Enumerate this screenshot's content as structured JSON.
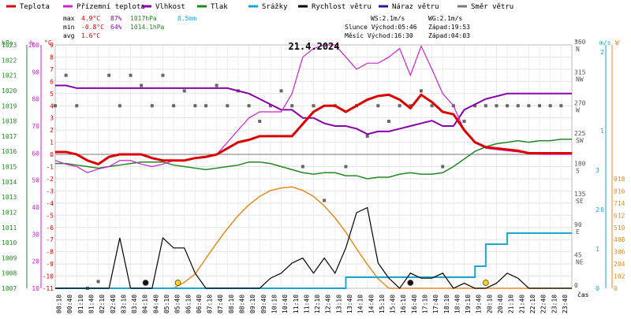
{
  "chart_data": {
    "type": "line",
    "title": "21.4.2024",
    "legend": [
      {
        "label": "Teplota",
        "color": "#dd0000"
      },
      {
        "label": "Přízemní teplota",
        "color": "#cc22cc"
      },
      {
        "label": "Vlhkost",
        "color": "#8800aa"
      },
      {
        "label": "Tlak",
        "color": "#228822"
      },
      {
        "label": "Srážky",
        "color": "#1aa7d6"
      },
      {
        "label": "Rychlost větru",
        "color": "#000000"
      },
      {
        "label": "Náraz větru",
        "color": "#2a1a99"
      },
      {
        "label": "Směr větru",
        "color": "#777777"
      }
    ],
    "stats": {
      "rows": [
        {
          "label": "max",
          "temp": "4.9°C",
          "hum": "87%",
          "press": "1017hPa",
          "rain": "0.5mm"
        },
        {
          "label": "min",
          "temp": "-0.8°C",
          "hum": "64%",
          "press": "1014.1hPa",
          "rain": ""
        },
        {
          "label": "avg",
          "temp": "1.6°C",
          "hum": "",
          "press": "",
          "rain": ""
        }
      ],
      "wind": [
        "WS:2.1m/s",
        "WG:2.1m/s",
        "Slunce Východ:05:46",
        "Západ:19:53",
        "Měsíc Východ:16:30",
        "Západ:04:03"
      ]
    },
    "axes": {
      "left_titles": [
        "hPa",
        "%",
        "°C"
      ],
      "right_titles": [
        "°",
        "m/s",
        "W"
      ],
      "x_label": "čas",
      "hpa_ticks": [
        "1023",
        "1022",
        "1021",
        "1020",
        "1019",
        "1018",
        "1017",
        "1016",
        "1015",
        "1014",
        "1013",
        "1012",
        "1011",
        "1010",
        "1009",
        "1008",
        "1007"
      ],
      "pct_ticks": [
        "100",
        "90",
        "80",
        "70",
        "60",
        "50",
        "40",
        "30",
        "20",
        "10"
      ],
      "c_ticks": [
        "9",
        "8",
        "7",
        "6",
        "5",
        "4",
        "3",
        "2",
        "1",
        "0",
        "-1",
        "-2",
        "-3",
        "-4",
        "-5",
        "-6",
        "-7",
        "-8",
        "-9",
        "-10",
        "-11"
      ],
      "deg_ticks": [
        "360\nN",
        "315\nNW",
        "270\nW",
        "225\nSW",
        "180\nS",
        "135\nSE",
        "90\nE",
        "45\nNE",
        "0"
      ],
      "ms_ticks": [
        "2",
        "1",
        "0"
      ],
      "ms_ticks_lower": [
        "3",
        "2",
        "1",
        "0"
      ],
      "w_ticks": [
        "918",
        "816",
        "714",
        "612",
        "510",
        "408",
        "306",
        "204",
        "102",
        "0"
      ],
      "time_ticks": [
        "00:10",
        "00:40",
        "01:10",
        "01:40",
        "02:10",
        "02:40",
        "03:10",
        "03:40",
        "04:10",
        "04:40",
        "05:10",
        "05:40",
        "06:10",
        "06:40",
        "07:10",
        "07:40",
        "08:10",
        "08:40",
        "09:10",
        "09:40",
        "10:10",
        "10:40",
        "11:10",
        "11:40",
        "12:10",
        "12:40",
        "13:10",
        "13:40",
        "14:10",
        "14:40",
        "15:10",
        "15:40",
        "16:10",
        "16:40",
        "17:10",
        "17:40",
        "18:10",
        "18:40",
        "19:10",
        "19:40",
        "20:10",
        "20:40",
        "21:10",
        "21:40",
        "22:10",
        "22:40",
        "23:10",
        "23:40"
      ]
    },
    "x_hours": [
      0,
      0.5,
      1,
      1.5,
      2,
      2.5,
      3,
      3.5,
      4,
      4.5,
      5,
      5.5,
      6,
      6.5,
      7,
      7.5,
      8,
      8.5,
      9,
      9.5,
      10,
      10.5,
      11,
      11.5,
      12,
      12.5,
      13,
      13.5,
      14,
      14.5,
      15,
      15.5,
      16,
      16.5,
      17,
      17.5,
      18,
      18.5,
      19,
      19.5,
      20,
      20.5,
      21,
      21.5,
      22,
      22.5,
      23,
      23.5,
      24
    ],
    "series": [
      {
        "name": "Teplota",
        "unit": "°C",
        "color": "#dd0000",
        "values": [
          0.2,
          0.2,
          0,
          -0.5,
          -0.8,
          -0.2,
          0,
          0,
          0,
          -0.3,
          -0.5,
          -0.5,
          -0.5,
          -0.3,
          -0.2,
          0,
          0.5,
          1,
          1.2,
          1.5,
          1.5,
          1.5,
          1.5,
          2.5,
          3.5,
          4,
          4,
          3.5,
          4,
          4.5,
          4.8,
          4.9,
          4.5,
          3.8,
          4.9,
          4.3,
          3.5,
          3.3,
          2,
          1,
          0.6,
          0.5,
          0.4,
          0.3,
          0.1,
          0.1,
          0.1,
          0.1,
          0.1
        ]
      },
      {
        "name": "Přízemní teplota",
        "unit": "°C",
        "color": "#cc22cc",
        "values": [
          -0.5,
          -0.8,
          -1,
          -1.5,
          -1.2,
          -1,
          -0.5,
          -0.5,
          -0.8,
          -1,
          -0.8,
          -0.5,
          -0.5,
          -0.3,
          -0.2,
          0,
          1,
          2,
          3,
          3.5,
          3.5,
          3.5,
          5,
          8,
          8.7,
          9,
          9,
          8,
          7,
          7.5,
          7.5,
          8,
          8.7,
          6.5,
          8.9,
          7,
          5,
          4,
          2,
          1,
          0.5,
          0.4,
          0.3,
          0.2,
          0.1,
          0,
          0,
          0,
          0
        ]
      },
      {
        "name": "Vlhkost",
        "unit": "%",
        "color": "#8800aa",
        "values": [
          85,
          85,
          84,
          84,
          84,
          84,
          84,
          84,
          84,
          84,
          84,
          84,
          84,
          84,
          84,
          84,
          84,
          83,
          82,
          80,
          78,
          76,
          76,
          73,
          73,
          71,
          70,
          70,
          69,
          67,
          68,
          68,
          69,
          70,
          71,
          72,
          70,
          70,
          76,
          78,
          80,
          81,
          82,
          82,
          82,
          82,
          82,
          82,
          82
        ]
      },
      {
        "name": "Tlak",
        "unit": "hPa",
        "color": "#228822",
        "values": [
          1015.2,
          1015.2,
          1015.1,
          1015,
          1014.9,
          1015,
          1015.1,
          1015.2,
          1015.3,
          1015.3,
          1015.3,
          1015.1,
          1015,
          1014.9,
          1014.8,
          1014.9,
          1015,
          1015.1,
          1015.3,
          1015.3,
          1015.2,
          1015,
          1014.8,
          1014.6,
          1014.5,
          1014.6,
          1014.6,
          1014.4,
          1014.4,
          1014.2,
          1014.3,
          1014.3,
          1014.5,
          1014.6,
          1014.5,
          1014.5,
          1014.6,
          1015,
          1015.5,
          1016,
          1016.3,
          1016.5,
          1016.6,
          1016.7,
          1016.6,
          1016.7,
          1016.7,
          1016.8,
          1016.8
        ]
      },
      {
        "name": "Srážky",
        "unit": "mm",
        "color": "#1aa7d6",
        "values": [
          0,
          0,
          0,
          0,
          0,
          0,
          0,
          0,
          0,
          0,
          0,
          0,
          0,
          0,
          0,
          0,
          0,
          0,
          0,
          0,
          0,
          0,
          0,
          0,
          0,
          0,
          0,
          0.1,
          0.1,
          0.1,
          0.1,
          0.1,
          0.1,
          0.1,
          0.1,
          0.1,
          0.1,
          0.1,
          0.1,
          0.2,
          0.4,
          0.4,
          0.5,
          0.5,
          0.5,
          0.5,
          0.5,
          0.5,
          0.5
        ]
      },
      {
        "name": "Rychlost větru",
        "unit": "m/s",
        "color": "#000000",
        "values": [
          0,
          0,
          0,
          0,
          0,
          0,
          1,
          0,
          0,
          0,
          1,
          0.8,
          0.8,
          0.3,
          0,
          0,
          0,
          0,
          0,
          0,
          0.2,
          0.3,
          0.5,
          0.6,
          0.3,
          0.6,
          0.3,
          0.8,
          1.5,
          1.6,
          0.5,
          0.2,
          0,
          0.3,
          0.2,
          0.2,
          0.3,
          0,
          0.1,
          0,
          0,
          0.1,
          0.3,
          0.2,
          0,
          0,
          0,
          0,
          0
        ]
      },
      {
        "name": "Slunce",
        "unit": "W",
        "color": "#e88a1a",
        "values": [
          0,
          0,
          0,
          0,
          0,
          0,
          0,
          0,
          0,
          0,
          0,
          0,
          50,
          120,
          250,
          380,
          500,
          610,
          700,
          770,
          820,
          840,
          850,
          820,
          770,
          690,
          590,
          470,
          330,
          200,
          80,
          0,
          0,
          0,
          0,
          0,
          0,
          0,
          0,
          0,
          0,
          0,
          0,
          0,
          0,
          0,
          0,
          0,
          0
        ]
      }
    ],
    "direction_points": [
      [
        0,
        270
      ],
      [
        0.5,
        315
      ],
      [
        1,
        270
      ],
      [
        1.5,
        0
      ],
      [
        2,
        10
      ],
      [
        2.5,
        315
      ],
      [
        3,
        270
      ],
      [
        3.5,
        315
      ],
      [
        4,
        300
      ],
      [
        4.5,
        270
      ],
      [
        5,
        315
      ],
      [
        5.5,
        270
      ],
      [
        6,
        292
      ],
      [
        6.5,
        270
      ],
      [
        7,
        270
      ],
      [
        7.5,
        300
      ],
      [
        8,
        270
      ],
      [
        8.5,
        292
      ],
      [
        9,
        270
      ],
      [
        9.5,
        247
      ],
      [
        10,
        270
      ],
      [
        10.5,
        292
      ],
      [
        11,
        270
      ],
      [
        11.5,
        180
      ],
      [
        12,
        270
      ],
      [
        12.5,
        130
      ],
      [
        13,
        270
      ],
      [
        13.5,
        180
      ],
      [
        14,
        270
      ],
      [
        14.5,
        225
      ],
      [
        15,
        270
      ],
      [
        15.5,
        247
      ],
      [
        16,
        270
      ],
      [
        16.5,
        270
      ],
      [
        17,
        292
      ],
      [
        17.5,
        270
      ],
      [
        18,
        180
      ],
      [
        18.5,
        270
      ],
      [
        19,
        247
      ],
      [
        19.5,
        270
      ],
      [
        20,
        270
      ],
      [
        20.5,
        270
      ],
      [
        21,
        270
      ],
      [
        21.5,
        270
      ],
      [
        22,
        270
      ],
      [
        22.5,
        270
      ],
      [
        23,
        270
      ],
      [
        23.5,
        270
      ]
    ],
    "markers": [
      {
        "kind": "sunrise",
        "x": 5.7,
        "color": "#ffd600"
      },
      {
        "kind": "sunset",
        "x": 20.0,
        "color": "#ffd600"
      },
      {
        "kind": "moonset",
        "x": 4.2,
        "color": "#111111"
      },
      {
        "kind": "moonrise",
        "x": 16.5,
        "color": "#111111"
      }
    ],
    "ranges": {
      "x": [
        0,
        24
      ],
      "c": [
        -11,
        9
      ],
      "pct": [
        10,
        100
      ],
      "hpa": [
        1007,
        1023
      ],
      "deg": [
        0,
        360
      ],
      "ms": [
        0,
        2
      ],
      "w": [
        0,
        918
      ]
    },
    "grid": true
  }
}
